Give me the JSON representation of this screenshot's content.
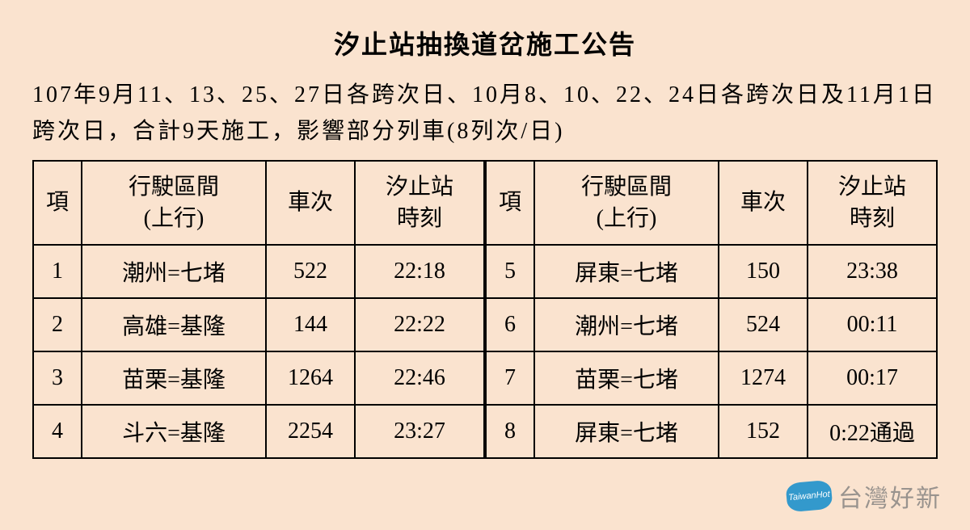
{
  "title": "汐止站抽換道岔施工公告",
  "description": "107年9月11、13、25、27日各跨次日、10月8、10、22、24日各跨次日及11月1日跨次日，合計9天施工，影響部分列車(8列次/日)",
  "headers": {
    "idx": "項",
    "route": "行駛區間\n(上行)",
    "train": "車次",
    "time": "汐止站\n時刻"
  },
  "left_rows": [
    {
      "idx": "1",
      "route": "潮州=七堵",
      "train": "522",
      "time": "22:18"
    },
    {
      "idx": "2",
      "route": "高雄=基隆",
      "train": "144",
      "time": "22:22"
    },
    {
      "idx": "3",
      "route": "苗栗=基隆",
      "train": "1264",
      "time": "22:46"
    },
    {
      "idx": "4",
      "route": "斗六=基隆",
      "train": "2254",
      "time": "23:27"
    }
  ],
  "right_rows": [
    {
      "idx": "5",
      "route": "屏東=七堵",
      "train": "150",
      "time": "23:38"
    },
    {
      "idx": "6",
      "route": "潮州=七堵",
      "train": "524",
      "time": "00:11"
    },
    {
      "idx": "7",
      "route": "苗栗=七堵",
      "train": "1274",
      "time": "00:17"
    },
    {
      "idx": "8",
      "route": "屏東=七堵",
      "train": "152",
      "time": "0:22通過"
    }
  ],
  "watermark": {
    "icon_text": "TaiwanHot",
    "label": "台灣好新"
  },
  "colors": {
    "background": "#fae3cf",
    "border": "#000000",
    "text": "#000000",
    "watermark_icon_bg": "#3399cc",
    "watermark_text": "rgba(120,120,120,0.75)"
  },
  "fontsize": {
    "title": 32,
    "description": 28,
    "table": 28,
    "watermark": 30
  }
}
